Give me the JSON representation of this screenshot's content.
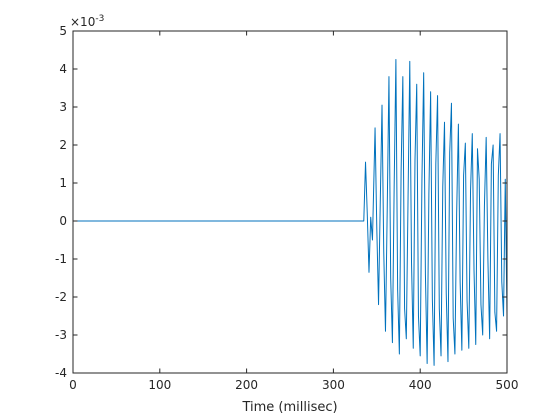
{
  "chart_data": {
    "type": "line",
    "title": "",
    "xlabel": "Time (millisec)",
    "ylabel": "",
    "xlim": [
      0,
      500
    ],
    "ylim": [
      -4,
      5
    ],
    "y_exponent_label": "×10",
    "y_exponent_power": "-3",
    "xticks": [
      0,
      100,
      200,
      300,
      400,
      500
    ],
    "xtick_labels": [
      "0",
      "100",
      "200",
      "300",
      "400",
      "500"
    ],
    "yticks": [
      -4,
      -3,
      -2,
      -1,
      0,
      1,
      2,
      3,
      4,
      5
    ],
    "ytick_labels": [
      "-4",
      "-3",
      "-2",
      "-1",
      "0",
      "1",
      "2",
      "3",
      "4",
      "5"
    ],
    "grid": false,
    "line_color": "#0072bd",
    "series": [
      {
        "x": [
          0,
          100,
          200,
          300,
          335,
          337,
          339,
          341,
          343,
          345,
          348,
          350,
          352,
          354,
          356,
          358,
          360,
          362,
          364,
          366,
          368,
          370,
          372,
          374,
          376,
          378,
          380,
          382,
          384,
          386,
          388,
          390,
          392,
          394,
          396,
          398,
          400,
          402,
          404,
          406,
          408,
          410,
          412,
          414,
          416,
          418,
          420,
          422,
          424,
          426,
          428,
          430,
          432,
          434,
          436,
          438,
          440,
          442,
          444,
          446,
          448,
          450,
          452,
          454,
          456,
          458,
          460,
          462,
          464,
          466,
          468,
          470,
          472,
          474,
          476,
          478,
          480,
          482,
          484,
          486,
          488,
          490,
          492,
          494,
          496,
          498,
          500
        ],
        "y": [
          0,
          0,
          0,
          0,
          0,
          1.55,
          0.2,
          -1.35,
          0.1,
          -0.5,
          2.45,
          -0.2,
          -2.2,
          0.5,
          3.05,
          -0.8,
          -2.9,
          0.3,
          3.8,
          -1.5,
          -3.2,
          0.9,
          4.25,
          -1.8,
          -3.5,
          1.3,
          3.8,
          -2.3,
          -3.1,
          0.6,
          4.2,
          -1.1,
          -3.35,
          1.6,
          3.6,
          -2.5,
          -3.55,
          1.1,
          3.9,
          -1.4,
          -3.75,
          0.7,
          3.4,
          -2.05,
          -3.8,
          1.5,
          3.3,
          -2.3,
          -3.55,
          0.9,
          2.6,
          -1.9,
          -3.7,
          1.8,
          3.1,
          -2.55,
          -3.5,
          0.2,
          2.55,
          -1.6,
          -3.4,
          1.2,
          2.05,
          -2.1,
          -3.35,
          0.8,
          2.3,
          -1.3,
          -3.25,
          1.9,
          1.1,
          -2.2,
          -3.0,
          0.4,
          2.2,
          -1.0,
          -3.1,
          1.5,
          2.0,
          -2.4,
          -2.9,
          1.2,
          2.3,
          -1.6,
          -2.5,
          1.1,
          -2.5
        ]
      }
    ]
  }
}
